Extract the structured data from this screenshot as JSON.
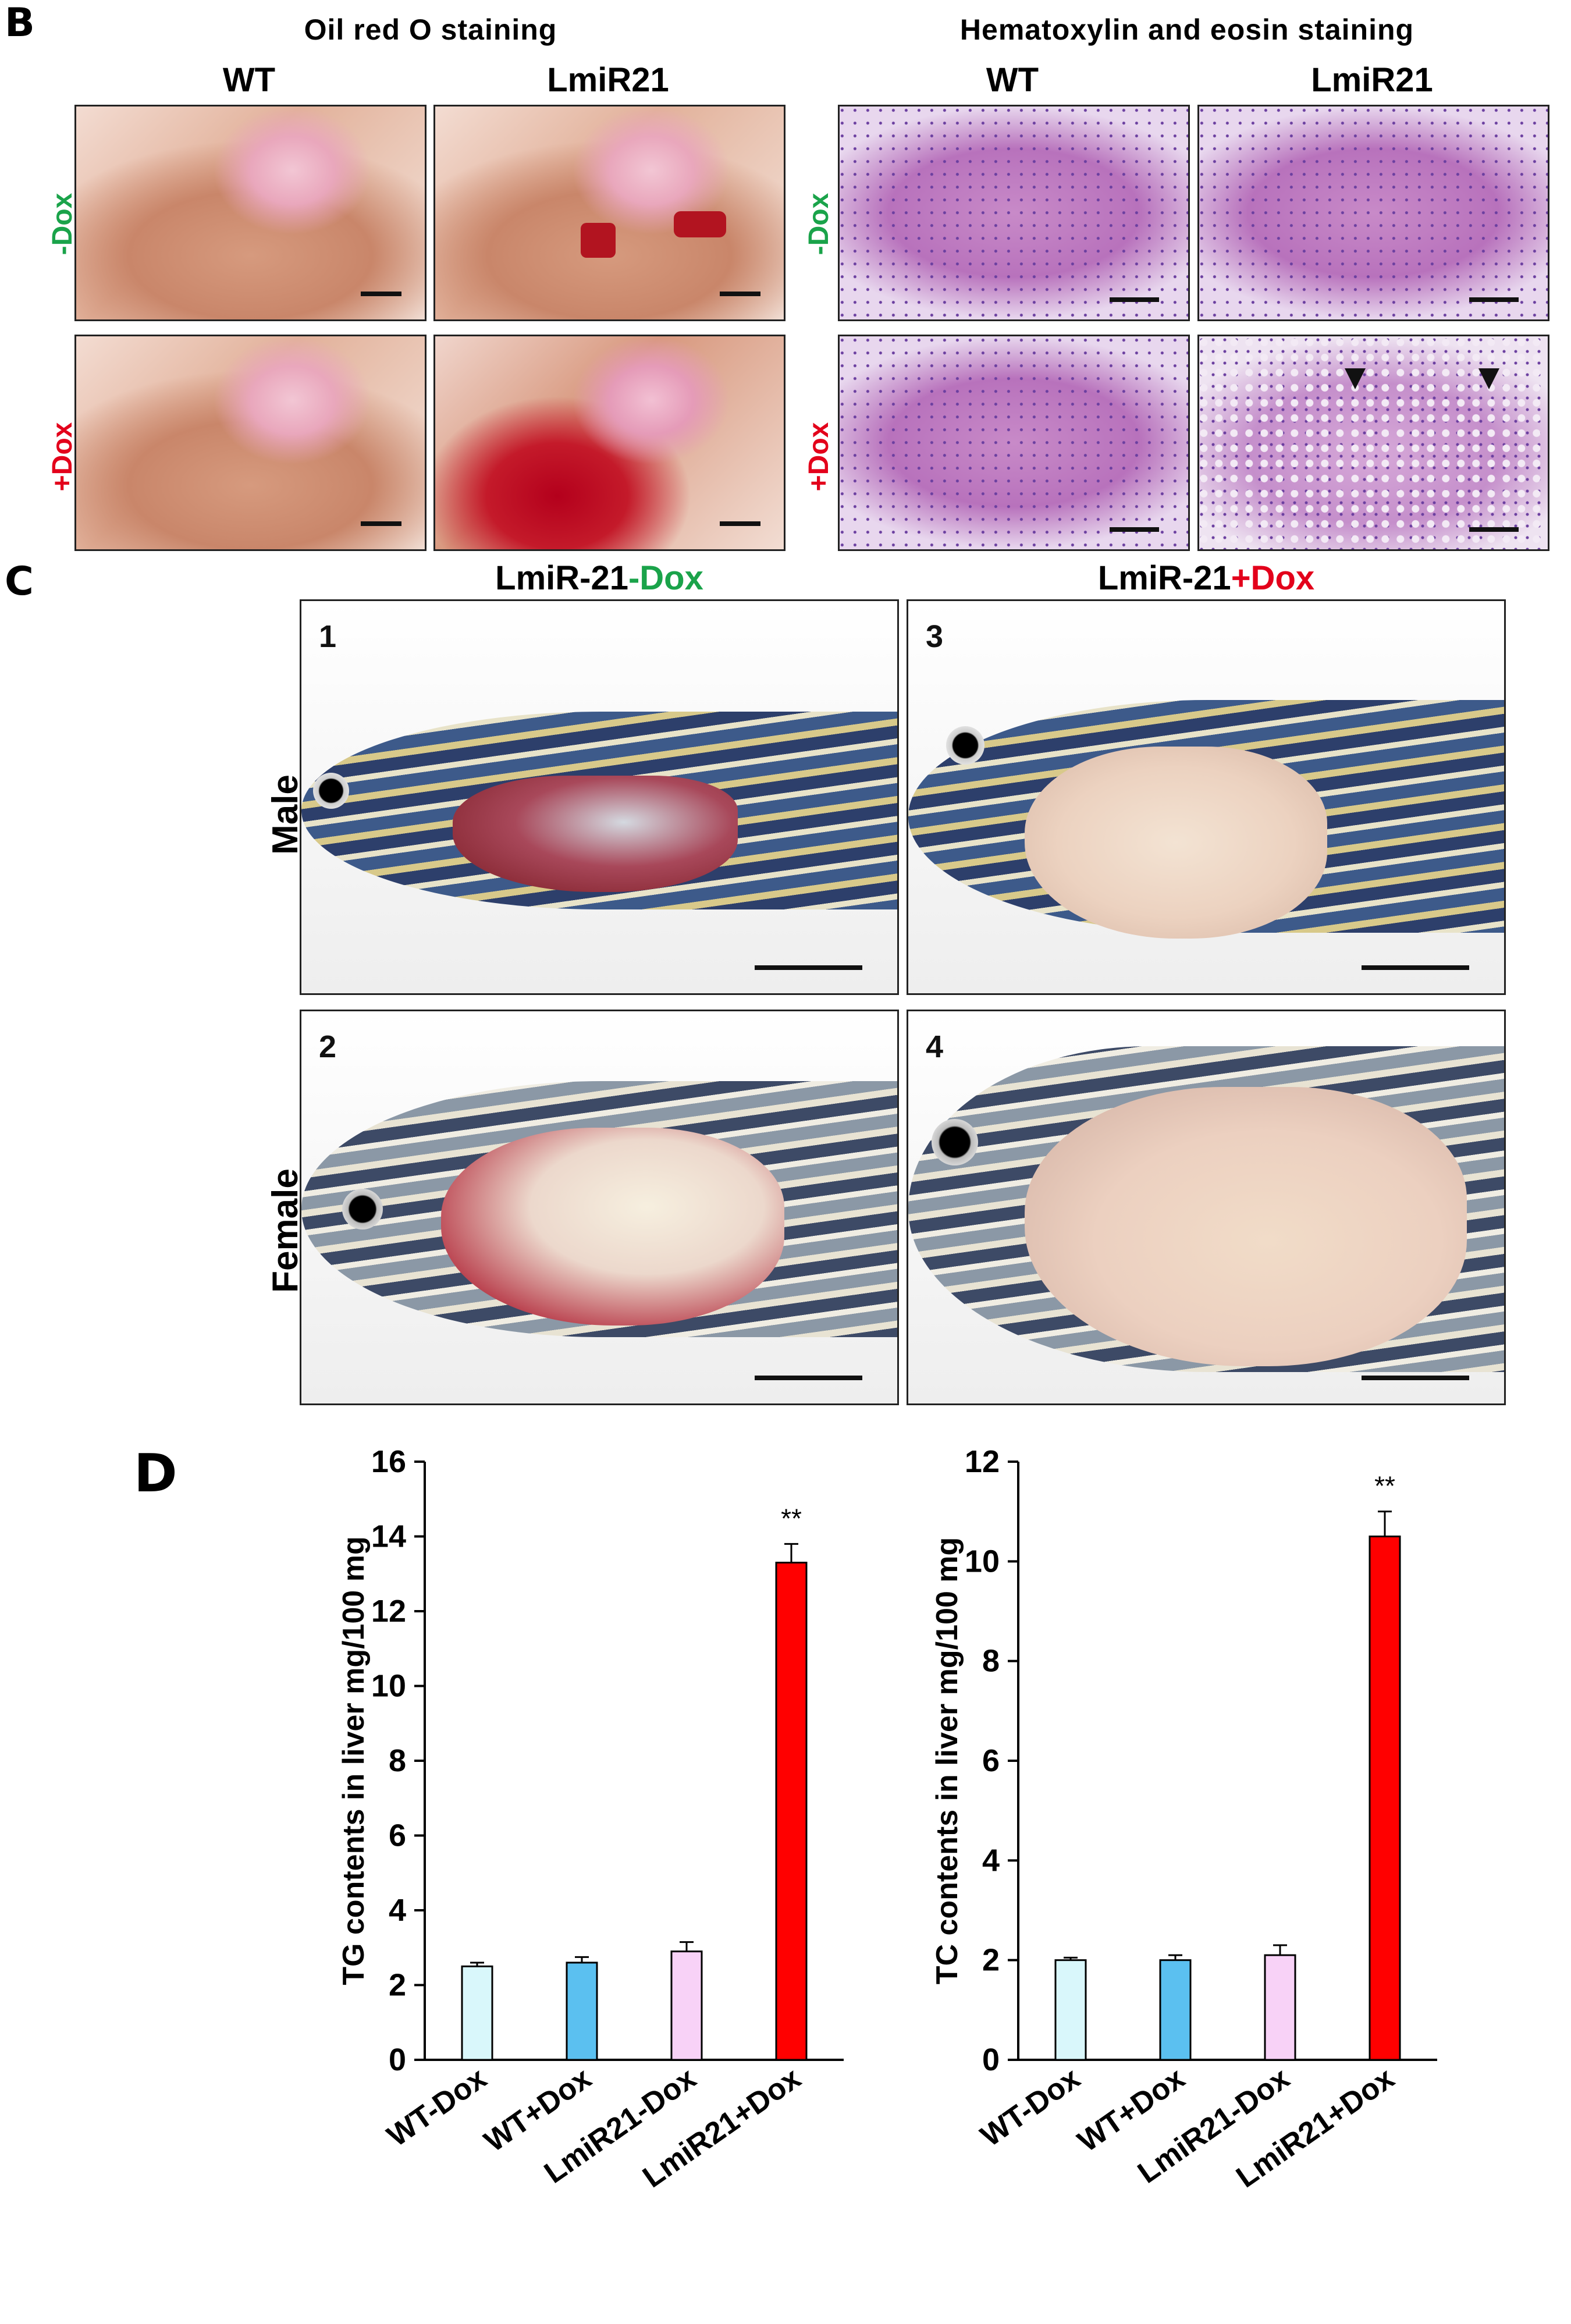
{
  "panel_b": {
    "letter": "B",
    "oil_red": {
      "title": "Oil red O staining",
      "col_wt": "WT",
      "col_lmir": "LmiR21"
    },
    "he": {
      "title": "Hematoxylin and eosin staining",
      "col_wt": "WT",
      "col_lmir": "LmiR21"
    },
    "row_minus": "-Dox",
    "row_plus": "+Dox"
  },
  "panel_c": {
    "letter": "C",
    "head_left_prefix": "LmiR-21",
    "head_left_suffix": "-Dox",
    "head_right_prefix": "LmiR-21",
    "head_right_suffix": "+Dox",
    "row_male": "Male",
    "row_female": "Female",
    "img_nums": [
      "1",
      "2",
      "3",
      "4"
    ]
  },
  "panel_d": {
    "letter": "D"
  },
  "colors": {
    "green_label": "#1aa34a",
    "red_label": "#e3001b",
    "bar_wt_minus": "#d9f7fb",
    "bar_wt_plus": "#5bc0f0",
    "bar_lmir_minus": "#f8d2f7",
    "bar_lmir_plus": "#ff0000"
  },
  "chart_data": [
    {
      "type": "bar",
      "categories": [
        "WT-Dox",
        "WT+Dox",
        "LmiR21-Dox",
        "LmiR21+Dox"
      ],
      "values": [
        2.5,
        2.6,
        2.9,
        13.3
      ],
      "errors": [
        0.1,
        0.15,
        0.25,
        0.5
      ],
      "ylabel": "TG contents in liver mg/100 mg",
      "ylim": [
        0,
        16
      ],
      "yticks": [
        0,
        2,
        4,
        6,
        8,
        10,
        12,
        14,
        16
      ],
      "annotations": [
        {
          "category": "LmiR21+Dox",
          "text": "**"
        }
      ]
    },
    {
      "type": "bar",
      "categories": [
        "WT-Dox",
        "WT+Dox",
        "LmiR21-Dox",
        "LmiR21+Dox"
      ],
      "values": [
        2.0,
        2.0,
        2.1,
        10.5
      ],
      "errors": [
        0.05,
        0.1,
        0.2,
        0.5
      ],
      "ylabel": "TC contents in liver mg/100 mg",
      "ylim": [
        0,
        12
      ],
      "yticks": [
        0,
        2,
        4,
        6,
        8,
        10,
        12
      ],
      "annotations": [
        {
          "category": "LmiR21+Dox",
          "text": "**"
        }
      ]
    }
  ]
}
